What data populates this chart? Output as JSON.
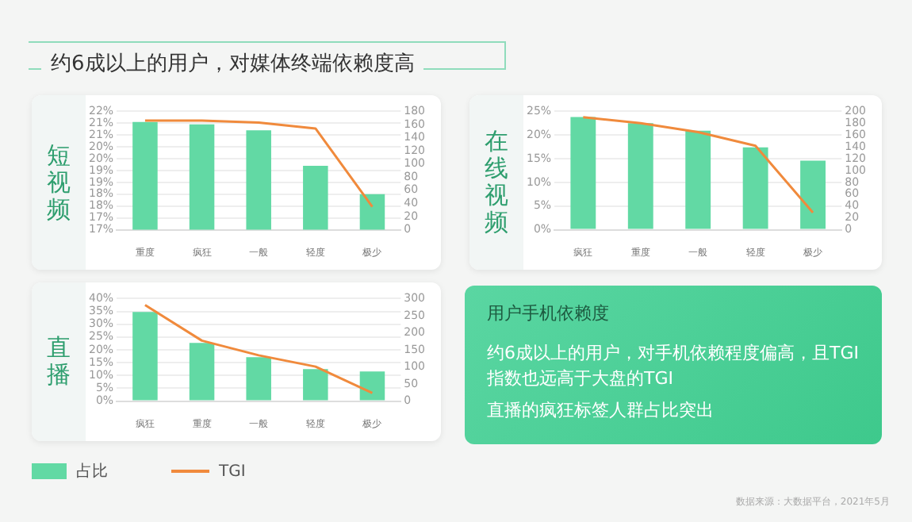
{
  "chart_data": [
    {
      "type": "other",
      "title": "约6成以上的用户，对媒体终端依赖度高"
    },
    {
      "type": "bar",
      "title": "短视频",
      "categories": [
        "重度",
        "疯狂",
        "一般",
        "轻度",
        "极少"
      ],
      "ylim": [
        17,
        22
      ],
      "yticks": [
        {
          "value": 17,
          "label": "17%"
        },
        {
          "value": 17.5,
          "label": "17%"
        },
        {
          "value": 18,
          "label": "18%"
        },
        {
          "value": 18.5,
          "label": "18%"
        },
        {
          "value": 19,
          "label": "19%"
        },
        {
          "value": 19.5,
          "label": "19%"
        },
        {
          "value": 20,
          "label": "20%"
        },
        {
          "value": 20.5,
          "label": "20%"
        },
        {
          "value": 21,
          "label": "21%"
        },
        {
          "value": 21.5,
          "label": "21%"
        },
        {
          "value": 22,
          "label": "22%"
        }
      ],
      "y2lim": [
        0,
        180
      ],
      "y2ticks": [
        0,
        20,
        40,
        60,
        80,
        100,
        120,
        140,
        160,
        180
      ],
      "grid": "y",
      "marker": "none",
      "line_style": "solid",
      "series": [
        {
          "type": "bar",
          "color": "#62d9a4",
          "values": [
            21.55,
            21.45,
            21.2,
            19.7,
            18.5
          ]
        },
        {
          "type": "line",
          "axis": "y2",
          "color": "#f08a3c",
          "values": [
            166,
            166,
            163,
            154,
            35
          ]
        }
      ]
    },
    {
      "type": "bar",
      "title": "在线视频",
      "categories": [
        "疯狂",
        "重度",
        "一般",
        "轻度",
        "极少"
      ],
      "ylim": [
        0,
        25
      ],
      "yticks": [
        {
          "value": 0,
          "label": "0%"
        },
        {
          "value": 5,
          "label": "5%"
        },
        {
          "value": 10,
          "label": "10%"
        },
        {
          "value": 15,
          "label": "15%"
        },
        {
          "value": 20,
          "label": "20%"
        },
        {
          "value": 25,
          "label": "25%"
        }
      ],
      "y2lim": [
        0,
        200
      ],
      "y2ticks": [
        0,
        20,
        40,
        60,
        80,
        100,
        120,
        140,
        160,
        180,
        200
      ],
      "grid": "y",
      "marker": "none",
      "line_style": "solid",
      "series": [
        {
          "type": "bar",
          "color": "#62d9a4",
          "values": [
            23.8,
            22.5,
            20.9,
            17.4,
            14.6
          ]
        },
        {
          "type": "line",
          "axis": "y2",
          "color": "#f08a3c",
          "values": [
            190,
            180,
            165,
            142,
            29
          ]
        }
      ]
    },
    {
      "type": "bar",
      "title": "直播",
      "categories": [
        "疯狂",
        "重度",
        "一般",
        "轻度",
        "极少"
      ],
      "ylim": [
        0,
        40
      ],
      "yticks": [
        {
          "value": 0,
          "label": "0%"
        },
        {
          "value": 5,
          "label": "5%"
        },
        {
          "value": 10,
          "label": "10%"
        },
        {
          "value": 15,
          "label": "15%"
        },
        {
          "value": 20,
          "label": "20%"
        },
        {
          "value": 25,
          "label": "25%"
        },
        {
          "value": 30,
          "label": "30%"
        },
        {
          "value": 35,
          "label": "35%"
        },
        {
          "value": 40,
          "label": "40%"
        }
      ],
      "y2lim": [
        0,
        300
      ],
      "y2ticks": [
        0,
        50,
        100,
        150,
        200,
        250,
        300
      ],
      "grid": "y",
      "marker": "none",
      "line_style": "solid",
      "legend": "bottom",
      "series": [
        {
          "name": "占比",
          "type": "bar",
          "color": "#62d9a4",
          "values": [
            34.8,
            22.7,
            17.1,
            12.5,
            11.6
          ]
        },
        {
          "name": "TGI",
          "type": "line",
          "axis": "y2",
          "color": "#f08a3c",
          "values": [
            281,
            177,
            134,
            101,
            24
          ]
        }
      ]
    },
    {
      "type": "other",
      "title": "用户手机依赖度",
      "annotations": [
        "约6成以上的用户，对手机依赖程度偏高，且TGI指数也远高于大盘的TGI",
        "直播的疯狂标签人群占比突出",
        "数据来源：大数据平台，2021年5月"
      ]
    }
  ]
}
